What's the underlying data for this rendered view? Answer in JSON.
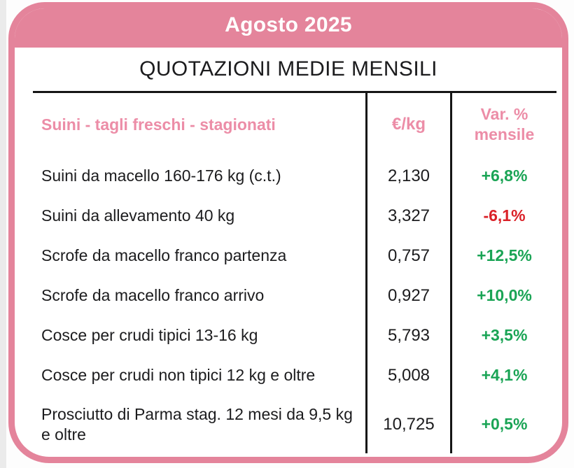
{
  "colors": {
    "pink": "#e4849b",
    "pink_text": "#ec8da7",
    "green": "#1aa455",
    "red": "#da2128",
    "line": "#151515"
  },
  "header": {
    "month_label": "Agosto 2025"
  },
  "card": {
    "title": "QUOTAZIONI MEDIE MENSILI"
  },
  "table": {
    "columns": {
      "category": "Suini - tagli freschi - stagionati",
      "unit": "€/kg",
      "variation_line1": "Var. %",
      "variation_line2": "mensile"
    },
    "rows": [
      {
        "label": "Suini da macello 160-176 kg (c.t.)",
        "price": "2,130",
        "variation": "+6,8%",
        "trend": "up"
      },
      {
        "label": "Suini da allevamento 40 kg",
        "price": "3,327",
        "variation": "-6,1%",
        "trend": "down"
      },
      {
        "label": "Scrofe da macello franco partenza",
        "price": "0,757",
        "variation": "+12,5%",
        "trend": "up"
      },
      {
        "label": "Scrofe da macello franco arrivo",
        "price": "0,927",
        "variation": "+10,0%",
        "trend": "up"
      },
      {
        "label": "Cosce per crudi tipici 13-16 kg",
        "price": "5,793",
        "variation": "+3,5%",
        "trend": "up"
      },
      {
        "label": "Cosce per crudi non tipici 12 kg e oltre",
        "price": "5,008",
        "variation": "+4,1%",
        "trend": "up"
      },
      {
        "label": "Prosciutto di Parma stag. 12 mesi da 9,5 kg e oltre",
        "price": "10,725",
        "variation": "+0,5%",
        "trend": "up"
      }
    ]
  }
}
